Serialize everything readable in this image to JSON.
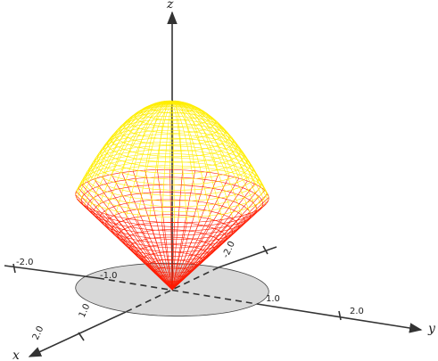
{
  "axis_labels": {
    "x": "x",
    "y": "y",
    "z": "z"
  },
  "y_ticks": [
    "-2.0",
    "-1.0",
    "1.0",
    "2.0"
  ],
  "x_ticks": [
    "2.0",
    "1.0",
    "-2.0"
  ]
}
